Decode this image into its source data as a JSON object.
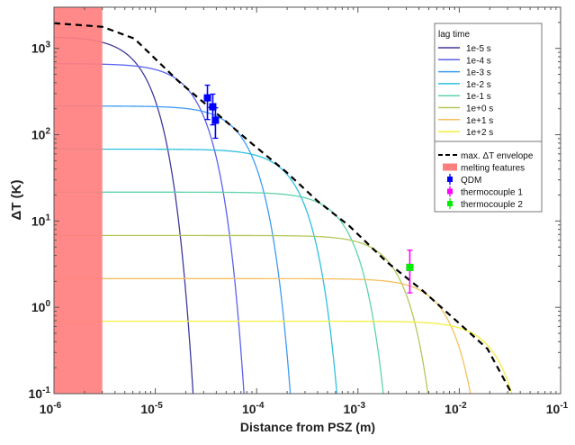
{
  "chart_data": {
    "type": "line",
    "xlabel": "Distance from PSZ (m)",
    "ylabel": "ΔT (K)",
    "xscale": "log",
    "yscale": "log",
    "xlim": [
      1e-06,
      0.1
    ],
    "ylim": [
      0.1,
      3000
    ],
    "x_ticks": [
      {
        "v": 1e-06,
        "e": "-6"
      },
      {
        "v": 1e-05,
        "e": "-5"
      },
      {
        "v": 0.0001,
        "e": "-4"
      },
      {
        "v": 0.001,
        "e": "-3"
      },
      {
        "v": 0.01,
        "e": "-2"
      },
      {
        "v": 0.1,
        "e": "-1"
      }
    ],
    "y_ticks": [
      {
        "v": 0.1,
        "e": "-1"
      },
      {
        "v": 1,
        "e": "0"
      },
      {
        "v": 10,
        "e": "1"
      },
      {
        "v": 100,
        "e": "2"
      },
      {
        "v": 1000,
        "e": "3"
      }
    ],
    "tick_base": "10",
    "legend_title": "lag time",
    "legend_position": "top-right",
    "series": [
      {
        "name": "1e-5 s",
        "color": "#3e3a9c",
        "plateau": 1370,
        "x_at_ymin": 2.36e-05
      },
      {
        "name": "1e-4 s",
        "color": "#5b62ee",
        "plateau": 665,
        "x_at_ymin": 7.5e-05
      },
      {
        "name": "1e-3 s",
        "color": "#3e9bf3",
        "plateau": 215,
        "x_at_ymin": 0.000215
      },
      {
        "name": "1e-2 s",
        "color": "#2fc0e0",
        "plateau": 68,
        "x_at_ymin": 0.00062
      },
      {
        "name": "1e-1 s",
        "color": "#5fd3aa",
        "plateau": 21.6,
        "x_at_ymin": 0.00178
      },
      {
        "name": "1e+0 s",
        "color": "#b3c85a",
        "plateau": 6.8,
        "x_at_ymin": 0.0049
      },
      {
        "name": "1e+1 s",
        "color": "#f6bf5e",
        "plateau": 2.15,
        "x_at_ymin": 0.0129
      },
      {
        "name": "1e+2 s",
        "color": "#f4ef3c",
        "plateau": 0.69,
        "x_at_ymin": 0.033
      }
    ],
    "envelope": {
      "name": "max. ΔT envelope",
      "color": "#000000",
      "x": [
        1e-06,
        3e-06,
        6.2e-06,
        1.71e-05,
        3.8e-05,
        9.2e-05,
        0.000194,
        0.0004,
        0.00081,
        0.0019,
        0.0043,
        0.0096,
        0.019,
        0.033
      ],
      "y": [
        1960,
        1780,
        1300,
        412,
        187,
        77,
        37.4,
        17,
        8.9,
        3.4,
        1.58,
        0.68,
        0.33,
        0.1
      ]
    },
    "melting_features": {
      "name": "melting features",
      "color": "#ff7f7f",
      "x_range": [
        1e-06,
        3e-06
      ]
    },
    "points": [
      {
        "name": "QDM",
        "color": "#0000ff",
        "data": [
          {
            "x": 3.27e-05,
            "y": 267,
            "ylow": 150,
            "yhigh": 375
          },
          {
            "x": 3.69e-05,
            "y": 211,
            "ylow": 130,
            "yhigh": 295
          },
          {
            "x": 3.92e-05,
            "y": 147,
            "ylow": 91,
            "yhigh": 205
          }
        ]
      },
      {
        "name": "thermocouple 1",
        "color": "#ff00ff",
        "data": [
          {
            "x": 0.00325,
            "y": 2.9,
            "ylow": 1.47,
            "yhigh": 4.6
          }
        ]
      },
      {
        "name": "thermocouple 2",
        "color": "#00ee00",
        "data": [
          {
            "x": 0.00325,
            "y": 2.9,
            "ylow": 2.7,
            "yhigh": 3.1
          }
        ]
      }
    ]
  }
}
